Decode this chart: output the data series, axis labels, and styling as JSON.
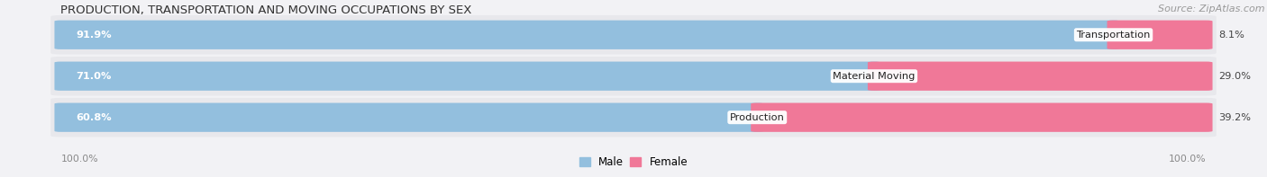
{
  "title": "PRODUCTION, TRANSPORTATION AND MOVING OCCUPATIONS BY SEX",
  "source": "Source: ZipAtlas.com",
  "categories": [
    "Transportation",
    "Material Moving",
    "Production"
  ],
  "male_values": [
    91.9,
    71.0,
    60.8
  ],
  "female_values": [
    8.1,
    29.0,
    39.2
  ],
  "male_color": "#93bfde",
  "female_color": "#f07898",
  "male_label": "Male",
  "female_label": "Female",
  "bg_color": "#e8e8ec",
  "bar_bg_color": "#ffffff",
  "title_fontsize": 9.5,
  "source_fontsize": 8.0,
  "axis_label_left": "100.0%",
  "axis_label_right": "100.0%"
}
